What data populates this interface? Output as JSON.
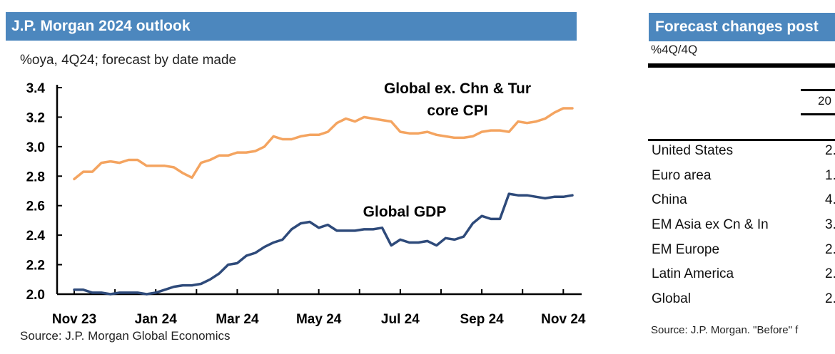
{
  "left_panel": {
    "title": "J.P. Morgan 2024 outlook",
    "subtitle": "%oya, 4Q24; forecast by date made",
    "source": "Source: J.P. Morgan Global Economics"
  },
  "chart_data": {
    "type": "line",
    "title": "J.P. Morgan 2024 outlook",
    "ylabel": "%oya, 4Q24",
    "xlabel": "forecast by date made",
    "ylim": [
      2.0,
      3.4
    ],
    "yticks": [
      2.0,
      2.2,
      2.4,
      2.6,
      2.8,
      3.0,
      3.2,
      3.4
    ],
    "ytick_labels": [
      "2.0",
      "2.2",
      "2.4",
      "2.6",
      "2.8",
      "3.0",
      "3.2",
      "3.4"
    ],
    "xlim": [
      0,
      55
    ],
    "xtick_positions": [
      0,
      9,
      18,
      27,
      36,
      45,
      54
    ],
    "xtick_labels": [
      "Nov 23",
      "Jan 24",
      "Mar 24",
      "May 24",
      "Jul 24",
      "Sep 24",
      "Nov 24"
    ],
    "series": [
      {
        "name": "Global ex. Chn & Tur core CPI",
        "label_lines": [
          "Global ex. Chn & Tur",
          "core CPI"
        ],
        "color": "#f4a460",
        "x": [
          0,
          1,
          2,
          3,
          4,
          5,
          6,
          7,
          8,
          9,
          10,
          11,
          12,
          13,
          14,
          15,
          16,
          17,
          18,
          19,
          20,
          21,
          22,
          23,
          24,
          25,
          26,
          27,
          28,
          29,
          30,
          31,
          32,
          33,
          34,
          35,
          36,
          37,
          38,
          39,
          40,
          41,
          42,
          43,
          44,
          45,
          46,
          47,
          48,
          49,
          50,
          51,
          52,
          53,
          54,
          55
        ],
        "values": [
          2.78,
          2.83,
          2.83,
          2.89,
          2.9,
          2.89,
          2.91,
          2.91,
          2.87,
          2.87,
          2.87,
          2.86,
          2.82,
          2.79,
          2.89,
          2.91,
          2.94,
          2.94,
          2.96,
          2.96,
          2.97,
          3.0,
          3.07,
          3.05,
          3.05,
          3.07,
          3.08,
          3.08,
          3.1,
          3.16,
          3.19,
          3.17,
          3.2,
          3.19,
          3.18,
          3.17,
          3.1,
          3.09,
          3.09,
          3.1,
          3.08,
          3.07,
          3.06,
          3.06,
          3.07,
          3.1,
          3.11,
          3.11,
          3.1,
          3.17,
          3.16,
          3.17,
          3.19,
          3.23,
          3.26,
          3.26
        ]
      },
      {
        "name": "Global GDP",
        "label_lines": [
          "Global GDP"
        ],
        "color": "#2e4a7a",
        "x": [
          0,
          1,
          2,
          3,
          4,
          5,
          6,
          7,
          8,
          9,
          10,
          11,
          12,
          13,
          14,
          15,
          16,
          17,
          18,
          19,
          20,
          21,
          22,
          23,
          24,
          25,
          26,
          27,
          28,
          29,
          30,
          31,
          32,
          33,
          34,
          35,
          36,
          37,
          38,
          39,
          40,
          41,
          42,
          43,
          44,
          45,
          46,
          47,
          48,
          49,
          50,
          51,
          52,
          53,
          54,
          55
        ],
        "values": [
          2.03,
          2.03,
          2.01,
          2.01,
          2.0,
          2.01,
          2.01,
          2.01,
          2.0,
          2.01,
          2.03,
          2.05,
          2.06,
          2.06,
          2.07,
          2.1,
          2.14,
          2.2,
          2.21,
          2.26,
          2.28,
          2.32,
          2.35,
          2.37,
          2.44,
          2.48,
          2.49,
          2.45,
          2.47,
          2.43,
          2.43,
          2.43,
          2.44,
          2.44,
          2.45,
          2.33,
          2.37,
          2.35,
          2.35,
          2.36,
          2.33,
          2.38,
          2.37,
          2.39,
          2.48,
          2.53,
          2.51,
          2.51,
          2.68,
          2.67,
          2.67,
          2.66,
          2.65,
          2.66,
          2.66,
          2.67
        ]
      }
    ]
  },
  "right_panel": {
    "title": "Forecast changes post",
    "subtitle": "%4Q/4Q",
    "year_header": "20",
    "rows": [
      {
        "name": "United States",
        "value": "2."
      },
      {
        "name": "Euro area",
        "value": "1."
      },
      {
        "name": "China",
        "value": "4."
      },
      {
        "name": "EM Asia ex Cn & In",
        "value": "3."
      },
      {
        "name": "EM Europe",
        "value": "2."
      },
      {
        "name": "Latin America",
        "value": "2."
      },
      {
        "name": "Global",
        "value": "2."
      }
    ],
    "source": "Source: J.P. Morgan. \"Before\" f"
  }
}
